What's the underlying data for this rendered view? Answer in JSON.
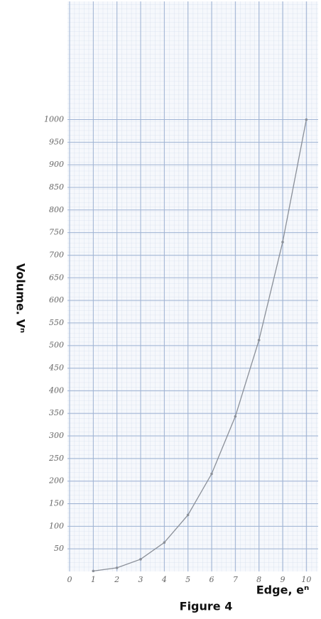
{
  "chart_data": {
    "type": "line",
    "title": "Figure 4",
    "x_label": "Edge, eⁿ",
    "y_label": "Volume. Vⁿ",
    "x": [
      1,
      2,
      3,
      4,
      5,
      6,
      7,
      8,
      9,
      10
    ],
    "series": [
      {
        "color": "#8a8f98",
        "values": [
          1,
          8,
          27,
          64,
          125,
          216,
          343,
          512,
          729,
          1000
        ]
      }
    ],
    "xlim": [
      0,
      10.5
    ],
    "ylim": [
      0,
      1260
    ],
    "xticks": [
      0,
      1,
      2,
      3,
      4,
      5,
      6,
      7,
      8,
      9,
      10
    ],
    "yticks": [
      50,
      100,
      150,
      200,
      250,
      300,
      350,
      400,
      450,
      500,
      550,
      600,
      650,
      700,
      750,
      800,
      850,
      900,
      950,
      1000
    ],
    "grid": true
  }
}
